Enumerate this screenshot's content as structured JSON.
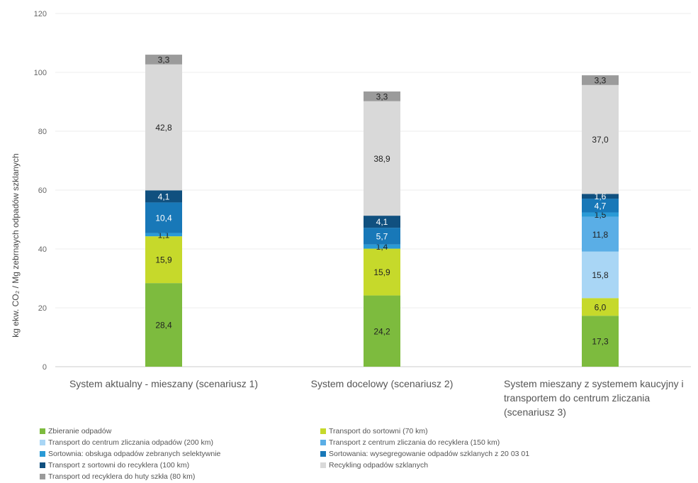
{
  "chart_data": {
    "type": "bar",
    "stacked": true,
    "ylabel": "kg ekw. CO₂ / Mg zebrnaych odpadów szklanych",
    "ylim": [
      0,
      120
    ],
    "yticks": [
      0,
      20,
      40,
      60,
      80,
      100,
      120
    ],
    "grid": true,
    "legend_position": "bottom",
    "categories": [
      [
        "System aktualny - mieszany (scenariusz 1)"
      ],
      [
        "System docelowy (scenariusz 2)"
      ],
      [
        "System mieszany z systemem kaucyjny i",
        "transportem do centrum zliczania",
        "(scenariusz 3)"
      ]
    ],
    "series": [
      {
        "name": "Zbieranie odpadów",
        "color": "#7dbb3e",
        "values": [
          28.4,
          24.2,
          17.3
        ],
        "labels": [
          "28,4",
          "24,2",
          "17,3"
        ],
        "label_color": "#222222"
      },
      {
        "name": "Transport do sortowni (70 km)",
        "color": "#c6d92b",
        "values": [
          15.9,
          15.9,
          6.0
        ],
        "labels": [
          "15,9",
          "15,9",
          "6,0"
        ],
        "label_color": "#222222"
      },
      {
        "name": "Transport do centrum zliczania odpadów (200 km)",
        "color": "#a9d6f5",
        "values": [
          0,
          0,
          15.8
        ],
        "labels": [
          "",
          "",
          "15,8"
        ],
        "label_color": "#222222"
      },
      {
        "name": "Transport z centrum zliczania do recyklera (150 km)",
        "color": "#5aaee6",
        "values": [
          0,
          0,
          11.8
        ],
        "labels": [
          "",
          "",
          "11,8"
        ],
        "label_color": "#222222"
      },
      {
        "name": "Sortownia: obsługa odpadów zebranych selektywnie",
        "color": "#2a9ad6",
        "values": [
          1.1,
          1.4,
          1.5
        ],
        "labels": [
          "1,1",
          "1,4",
          "1,5"
        ],
        "label_color": "#222222"
      },
      {
        "name": "Sortowania: wysegregowanie odpadów szklanych z 20 03 01",
        "color": "#1878b8",
        "values": [
          10.4,
          5.7,
          4.7
        ],
        "labels": [
          "10,4",
          "5,7",
          "4,7"
        ],
        "label_color": "#ffffff"
      },
      {
        "name": "Transport z sortowni do recyklera (100 km)",
        "color": "#10507f",
        "values": [
          4.1,
          4.1,
          1.6
        ],
        "labels": [
          "4,1",
          "4,1",
          "1,6"
        ],
        "label_color": "#ffffff"
      },
      {
        "name": "Recykling odpadów szklanych",
        "color": "#d9d9d9",
        "values": [
          42.8,
          38.9,
          37.0
        ],
        "labels": [
          "42,8",
          "38,9",
          "37,0"
        ],
        "label_color": "#222222"
      },
      {
        "name": "Transport od recyklera do huty szkła (80 km)",
        "color": "#9b9b9b",
        "values": [
          3.3,
          3.3,
          3.3
        ],
        "labels": [
          "3,3",
          "3,3",
          "3,3"
        ],
        "label_color": "#222222"
      }
    ]
  }
}
